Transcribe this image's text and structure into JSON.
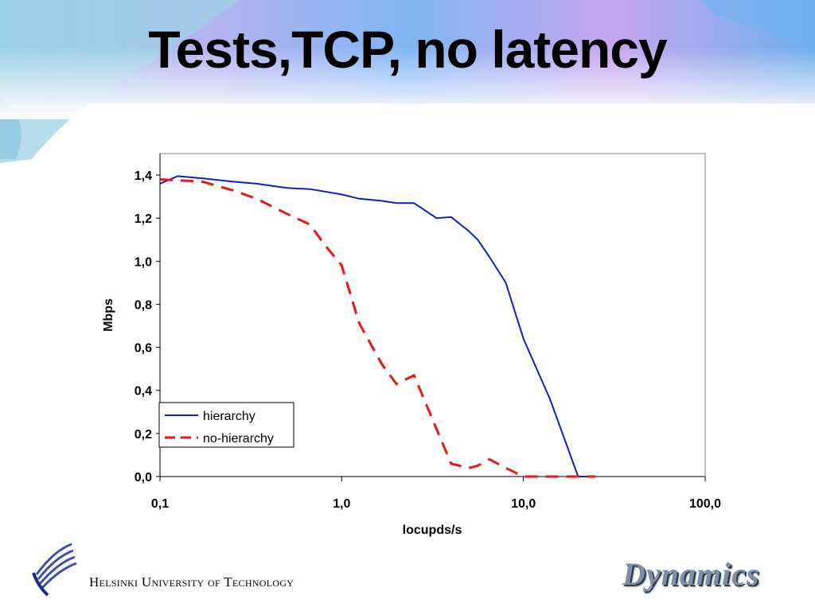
{
  "slide": {
    "title": "Tests,TCP, no latency",
    "footer_org": "Helsinki University of Technology",
    "logo_right_text": "Dynamics"
  },
  "colors": {
    "hierarchy": "#1020c8",
    "no_hierarchy": "#e81818"
  },
  "chart_data": {
    "type": "line",
    "title": "",
    "xlabel": "locupds/s",
    "ylabel": "Mbps",
    "xscale": "log",
    "xlim": [
      0.1,
      100
    ],
    "ylim": [
      0,
      1.5
    ],
    "x_ticks": [
      0.1,
      1,
      10,
      100
    ],
    "x_tick_labels": [
      "0,1",
      "1,0",
      "10,0",
      "100,0"
    ],
    "y_ticks": [
      0,
      0.2,
      0.4,
      0.6,
      0.8,
      1.0,
      1.2,
      1.4
    ],
    "y_tick_labels": [
      "0,0",
      "0,2",
      "0,4",
      "0,6",
      "0,8",
      "1,0",
      "1,2",
      "1,4"
    ],
    "legend_position": "bottom-left",
    "series": [
      {
        "name": "hierarchy",
        "style": "solid",
        "x": [
          0.1,
          0.125,
          0.17,
          0.25,
          0.34,
          0.5,
          0.67,
          1.0,
          1.25,
          1.67,
          2.0,
          2.5,
          3.33,
          4.0,
          5.0,
          5.6,
          6.5,
          8.0,
          10.0,
          14.0,
          20.0,
          25.0
        ],
        "y": [
          1.36,
          1.395,
          1.385,
          1.37,
          1.36,
          1.34,
          1.335,
          1.31,
          1.29,
          1.28,
          1.27,
          1.27,
          1.2,
          1.205,
          1.14,
          1.1,
          1.02,
          0.9,
          0.64,
          0.36,
          0.0,
          0.0
        ]
      },
      {
        "name": "no-hierarchy",
        "style": "dashed",
        "x": [
          0.1,
          0.17,
          0.25,
          0.34,
          0.5,
          0.67,
          0.8,
          1.0,
          1.25,
          1.67,
          2.0,
          2.5,
          3.33,
          4.0,
          5.0,
          5.6,
          6.5,
          8.0,
          10.0,
          14.0,
          20.0,
          25.0
        ],
        "y": [
          1.38,
          1.37,
          1.33,
          1.29,
          1.22,
          1.17,
          1.08,
          0.98,
          0.71,
          0.52,
          0.43,
          0.47,
          0.22,
          0.06,
          0.04,
          0.05,
          0.08,
          0.04,
          0.0,
          0.0,
          0.0,
          0.0
        ]
      }
    ]
  }
}
